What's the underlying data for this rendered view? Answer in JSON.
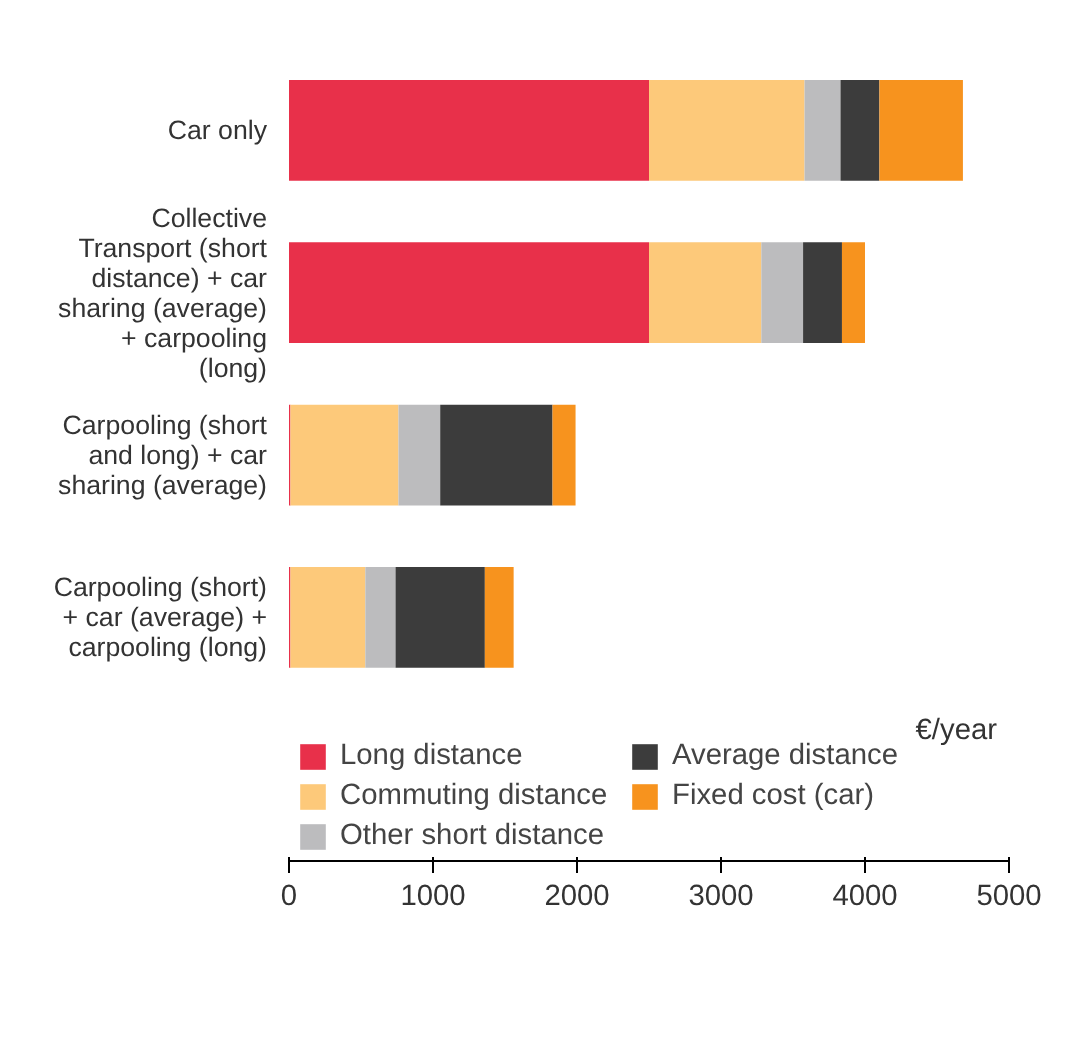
{
  "chart_data": {
    "type": "bar",
    "orientation": "horizontal",
    "stacked": true,
    "categories": [
      "Car only",
      "Collective Transport (short distance) + car sharing (average) + carpooling (long)",
      "Carpooling (short and long) + car sharing (average)",
      "Carpooling (short) + car (average) + carpooling (long)"
    ],
    "series": [
      {
        "name": "Long distance",
        "color": "#e8304a",
        "values": [
          2500,
          2500,
          10,
          10
        ]
      },
      {
        "name": "Commuting distance",
        "color": "#fdc97a",
        "values": [
          1080,
          780,
          750,
          520
        ]
      },
      {
        "name": "Other short distance",
        "color": "#bcbcbe",
        "values": [
          250,
          290,
          290,
          210
        ]
      },
      {
        "name": "Average distance",
        "color": "#3c3c3c",
        "values": [
          270,
          270,
          780,
          620
        ]
      },
      {
        "name": "Fixed cost (car)",
        "color": "#f7931e",
        "values": [
          580,
          160,
          160,
          200
        ]
      }
    ],
    "xlim": [
      0,
      5000
    ],
    "xticks": [
      0,
      1000,
      2000,
      3000,
      4000,
      5000
    ],
    "annotations": [
      "€/year"
    ],
    "grid": false,
    "legend": "bottom"
  }
}
